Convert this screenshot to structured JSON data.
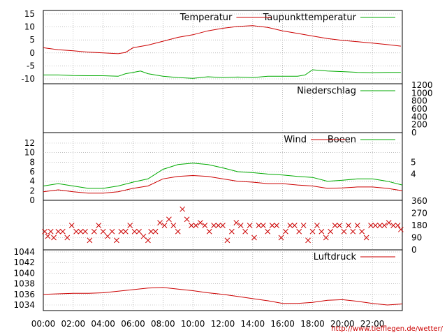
{
  "chart_data": [
    {
      "panel": "temperature",
      "type": "line",
      "ylim": [
        -12,
        16
      ],
      "yticks": [
        "15",
        "10",
        "5",
        "0",
        "-5",
        "-10"
      ],
      "ytick_values": [
        15,
        10,
        5,
        0,
        -5,
        -10
      ],
      "grid": true,
      "legend_placement": "top-right",
      "series": [
        {
          "name": "Temperatur",
          "color": "#cc0000",
          "x": [
            0,
            1,
            2,
            3,
            4,
            5,
            5.5,
            6,
            6.5,
            7,
            8,
            9,
            10,
            11,
            12,
            13,
            14,
            15,
            16,
            17,
            18,
            19,
            20,
            21,
            22,
            23,
            23.9
          ],
          "values": [
            2,
            1.2,
            0.8,
            0.3,
            0,
            -0.3,
            0.2,
            2.0,
            2.5,
            3,
            4.5,
            6,
            7,
            8.5,
            9.5,
            10.2,
            10.5,
            9.8,
            8.5,
            7.5,
            6.5,
            5.5,
            4.8,
            4.3,
            3.8,
            3.2,
            2.6
          ]
        },
        {
          "name": "Taupunkttemperatur",
          "color": "#00aa00",
          "x": [
            0,
            1,
            2,
            3,
            4,
            5,
            5.5,
            6,
            6.5,
            7,
            8,
            9,
            10,
            11,
            12,
            13,
            14,
            15,
            16,
            17,
            17.5,
            18,
            19,
            20,
            21,
            22,
            23,
            23.9
          ],
          "values": [
            -8.5,
            -8.5,
            -8.7,
            -8.8,
            -8.8,
            -9,
            -8,
            -7.5,
            -7,
            -8,
            -9,
            -9.5,
            -9.8,
            -9.2,
            -9.5,
            -9.3,
            -9.5,
            -9.0,
            -9.0,
            -9.0,
            -8.5,
            -6.5,
            -7,
            -7.2,
            -7.5,
            -7.6,
            -7.5,
            -7.5
          ]
        }
      ]
    },
    {
      "panel": "precipitation",
      "type": "line",
      "ylim": [
        0,
        1200
      ],
      "yticks": [
        "1200",
        "1000",
        "800",
        "600",
        "400",
        "200",
        "0"
      ],
      "ytick_values": [
        1200,
        1000,
        800,
        600,
        400,
        200,
        0
      ],
      "grid": false,
      "legend_placement": "top-right",
      "series": [
        {
          "name": "Niederschlag",
          "color": "#00aa00",
          "x": [
            0,
            24
          ],
          "values": [
            0,
            0
          ]
        }
      ]
    },
    {
      "panel": "wind",
      "type": "line",
      "ylim": [
        0,
        14
      ],
      "yticks": [
        "12",
        "10",
        "8",
        "6",
        "4",
        "2",
        "0"
      ],
      "ytick_values": [
        12,
        10,
        8,
        6,
        4,
        2,
        0
      ],
      "beaufort_ticks": [
        "5",
        "4"
      ],
      "beaufort_tick_values": [
        8.0,
        5.5
      ],
      "grid": true,
      "legend_placement": "top-right",
      "series": [
        {
          "name": "Wind",
          "color": "#cc0000",
          "x": [
            0,
            1,
            2,
            3,
            4,
            5,
            6,
            7,
            8,
            9,
            10,
            11,
            12,
            13,
            14,
            15,
            16,
            17,
            18,
            19,
            20,
            21,
            22,
            23,
            24
          ],
          "values": [
            1.8,
            2.2,
            1.8,
            1.5,
            1.5,
            1.8,
            2.5,
            3.0,
            4.5,
            5.0,
            5.2,
            5.0,
            4.5,
            4.0,
            3.8,
            3.5,
            3.5,
            3.2,
            3.0,
            2.5,
            2.6,
            2.8,
            2.8,
            2.5,
            2.0
          ]
        },
        {
          "name": "Boeen",
          "color": "#00aa00",
          "x": [
            0,
            1,
            2,
            3,
            4,
            5,
            6,
            7,
            8,
            9,
            10,
            11,
            12,
            13,
            14,
            15,
            16,
            17,
            18,
            19,
            20,
            21,
            22,
            23,
            24
          ],
          "values": [
            3.0,
            3.5,
            3.0,
            2.5,
            2.5,
            3.0,
            3.8,
            4.5,
            6.5,
            7.5,
            7.8,
            7.5,
            6.8,
            6.0,
            5.8,
            5.5,
            5.3,
            5.0,
            4.8,
            4.0,
            4.2,
            4.5,
            4.5,
            4.0,
            3.2
          ]
        }
      ]
    },
    {
      "panel": "wind-direction",
      "type": "scatter",
      "ylim": [
        0,
        360
      ],
      "yticks": [
        "360",
        "270",
        "180",
        "90",
        "0"
      ],
      "ytick_values": [
        360,
        270,
        180,
        90,
        0
      ],
      "grid": true,
      "marker": "x",
      "color": "#cc0000",
      "x": [
        0.1,
        0.3,
        0.5,
        0.7,
        1.0,
        1.3,
        1.6,
        1.9,
        2.2,
        2.5,
        2.8,
        3.1,
        3.4,
        3.7,
        4.0,
        4.3,
        4.6,
        4.9,
        5.2,
        5.5,
        5.8,
        6.1,
        6.4,
        6.7,
        7.0,
        7.2,
        7.5,
        7.8,
        8.1,
        8.4,
        8.7,
        9.0,
        9.3,
        9.6,
        9.9,
        10.2,
        10.5,
        10.8,
        11.1,
        11.4,
        11.7,
        12.0,
        12.3,
        12.6,
        12.9,
        13.2,
        13.5,
        13.8,
        14.1,
        14.4,
        14.7,
        15.0,
        15.3,
        15.6,
        15.9,
        16.2,
        16.5,
        16.8,
        17.1,
        17.4,
        17.7,
        18.0,
        18.3,
        18.6,
        18.9,
        19.2,
        19.5,
        19.8,
        20.1,
        20.4,
        20.7,
        21.0,
        21.3,
        21.6,
        21.9,
        22.2,
        22.5,
        22.8,
        23.1,
        23.4,
        23.7,
        23.9
      ],
      "values": [
        135,
        100,
        135,
        90,
        135,
        135,
        90,
        180,
        135,
        135,
        135,
        70,
        135,
        180,
        135,
        100,
        135,
        70,
        135,
        135,
        180,
        135,
        135,
        100,
        70,
        135,
        135,
        200,
        180,
        225,
        180,
        135,
        300,
        225,
        180,
        180,
        200,
        180,
        135,
        180,
        180,
        180,
        70,
        135,
        200,
        180,
        135,
        180,
        90,
        180,
        180,
        135,
        180,
        180,
        90,
        135,
        180,
        180,
        135,
        180,
        70,
        135,
        180,
        135,
        90,
        135,
        180,
        180,
        135,
        180,
        135,
        180,
        135,
        90,
        180,
        180,
        180,
        180,
        200,
        180,
        180,
        150
      ]
    },
    {
      "panel": "pressure",
      "type": "line",
      "ylim": [
        1033,
        1044
      ],
      "yticks": [
        "1044",
        "1042",
        "1040",
        "1038",
        "1036",
        "1034"
      ],
      "ytick_values": [
        1044,
        1042,
        1040,
        1038,
        1036,
        1034
      ],
      "grid": true,
      "legend_placement": "top-right",
      "series": [
        {
          "name": "Luftdruck",
          "color": "#cc0000",
          "x": [
            0,
            1,
            2,
            3,
            4,
            5,
            6,
            7,
            8,
            9,
            10,
            11,
            12,
            13,
            14,
            15,
            16,
            17,
            18,
            19,
            20,
            21,
            22,
            23,
            24
          ],
          "values": [
            1036.0,
            1036.1,
            1036.2,
            1036.2,
            1036.3,
            1036.6,
            1036.9,
            1037.2,
            1037.3,
            1037.0,
            1036.7,
            1036.3,
            1036.0,
            1035.6,
            1035.2,
            1034.8,
            1034.3,
            1034.3,
            1034.5,
            1034.9,
            1035.0,
            1034.7,
            1034.3,
            1034.0,
            1034.2
          ]
        }
      ]
    }
  ],
  "x_axis": {
    "range": [
      0,
      24
    ],
    "tick_labels": [
      "00:00",
      "02:00",
      "04:00",
      "06:00",
      "08:00",
      "10:00",
      "12:00",
      "14:00",
      "16:00",
      "18:00",
      "20:00",
      "22:00"
    ],
    "tick_values": [
      0,
      2,
      4,
      6,
      8,
      10,
      12,
      14,
      16,
      18,
      20,
      22
    ]
  },
  "footer_url": "http://www.tiefflegen.de/wetter/",
  "colors": {
    "red": "#cc0000",
    "green": "#00aa00",
    "grid": "#9a9a9a"
  }
}
